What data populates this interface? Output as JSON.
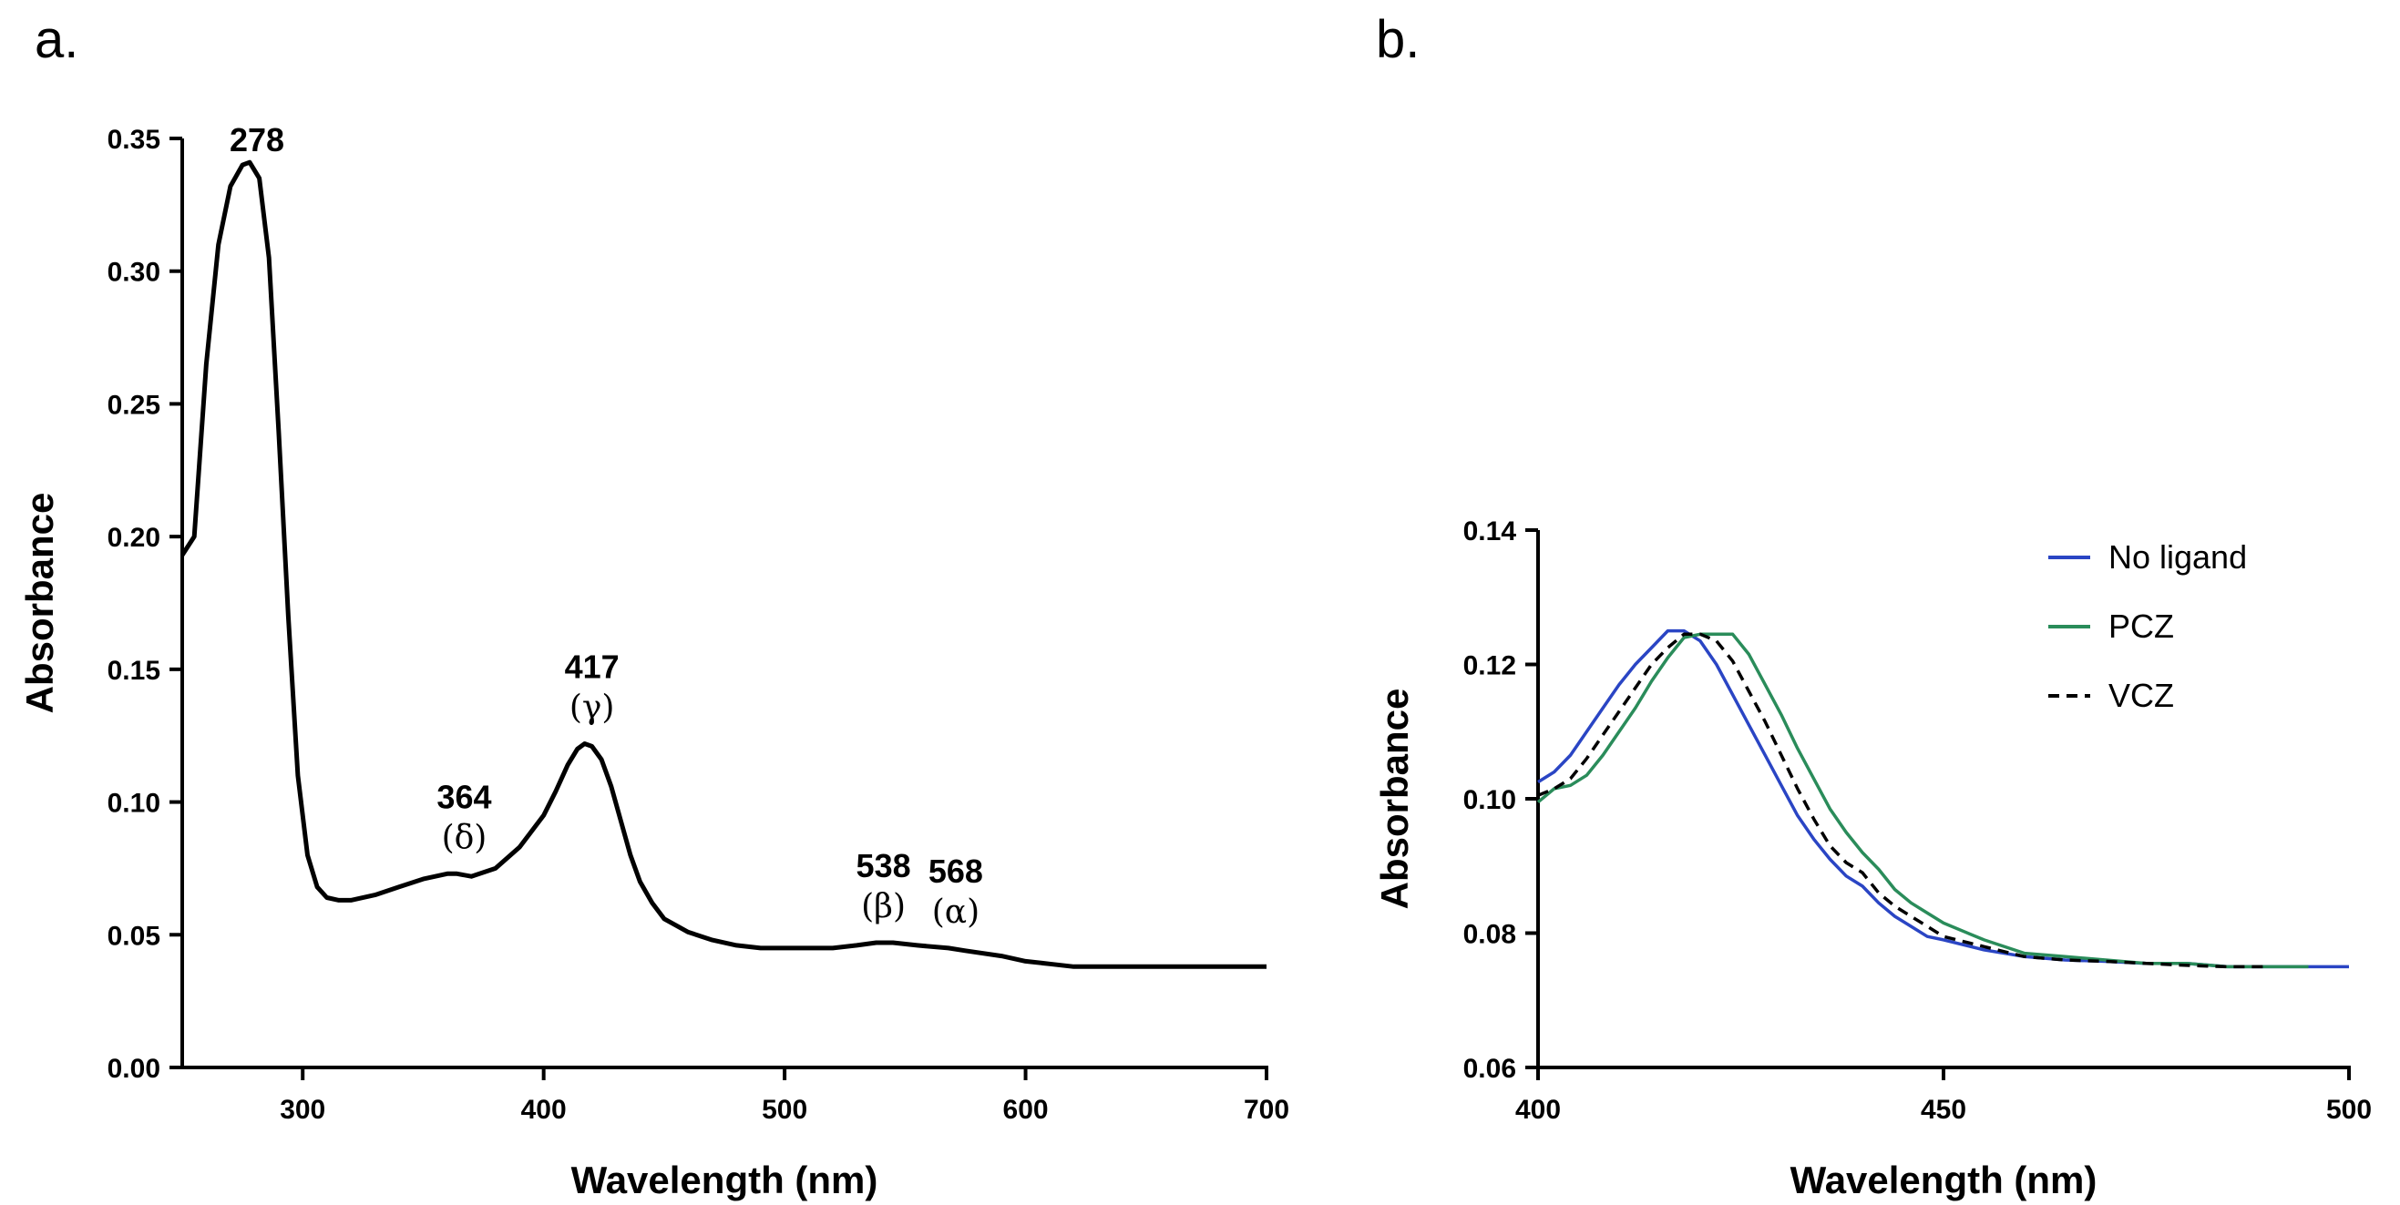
{
  "panels": {
    "a": {
      "letter": "a."
    },
    "b": {
      "letter": "b."
    }
  },
  "chart_data": [
    {
      "type": "line",
      "panel": "a",
      "xlabel": "Wavelength (nm)",
      "ylabel": "Absorbance",
      "xlim": [
        250,
        700
      ],
      "ylim": [
        0,
        0.35
      ],
      "xticks": [
        300,
        400,
        500,
        600,
        700
      ],
      "xtick_labels": [
        "300",
        "400",
        "500",
        "600",
        "700"
      ],
      "yticks": [
        0,
        0.05,
        0.1,
        0.15,
        0.2,
        0.25,
        0.3,
        0.35
      ],
      "ytick_labels": [
        "0.00",
        "0.05",
        "0.10",
        "0.15",
        "0.20",
        "0.25",
        "0.30",
        "0.35"
      ],
      "grid": false,
      "series": [
        {
          "color": "#000000",
          "x": [
            250,
            255,
            260,
            265,
            270,
            275,
            278,
            282,
            286,
            290,
            294,
            298,
            302,
            306,
            310,
            315,
            320,
            330,
            340,
            350,
            360,
            364,
            370,
            380,
            390,
            400,
            405,
            410,
            414,
            417,
            420,
            424,
            428,
            432,
            436,
            440,
            445,
            450,
            460,
            470,
            480,
            490,
            500,
            510,
            520,
            530,
            538,
            545,
            555,
            568,
            575,
            590,
            600,
            610,
            620,
            640,
            660,
            680,
            700
          ],
          "y": [
            0.193,
            0.2,
            0.265,
            0.31,
            0.332,
            0.34,
            0.341,
            0.335,
            0.305,
            0.24,
            0.17,
            0.11,
            0.08,
            0.068,
            0.064,
            0.063,
            0.063,
            0.065,
            0.068,
            0.071,
            0.073,
            0.073,
            0.072,
            0.075,
            0.083,
            0.095,
            0.104,
            0.114,
            0.12,
            0.122,
            0.121,
            0.116,
            0.106,
            0.093,
            0.08,
            0.07,
            0.062,
            0.056,
            0.051,
            0.048,
            0.046,
            0.045,
            0.045,
            0.045,
            0.045,
            0.046,
            0.047,
            0.047,
            0.046,
            0.045,
            0.044,
            0.042,
            0.04,
            0.039,
            0.038,
            0.038,
            0.038,
            0.038,
            0.038
          ]
        }
      ],
      "annotations": [
        {
          "x": 278,
          "label_top": "278",
          "label_bottom": ""
        },
        {
          "x": 364,
          "label_top": "364",
          "label_bottom": "(δ)"
        },
        {
          "x": 417,
          "label_top": "417",
          "label_bottom": "(γ)"
        },
        {
          "x": 538,
          "label_top": "538",
          "label_bottom": "(β)"
        },
        {
          "x": 568,
          "label_top": "568",
          "label_bottom": "(α)"
        }
      ]
    },
    {
      "type": "line",
      "panel": "b",
      "xlabel": "Wavelength (nm)",
      "ylabel": "Absorbance",
      "xlim": [
        400,
        500
      ],
      "ylim": [
        0.06,
        0.14
      ],
      "xticks": [
        400,
        450,
        500
      ],
      "xtick_labels": [
        "400",
        "450",
        "500"
      ],
      "yticks": [
        0.06,
        0.08,
        0.1,
        0.12,
        0.14
      ],
      "ytick_labels": [
        "0.06",
        "0.08",
        "0.10",
        "0.12",
        "0.14"
      ],
      "grid": false,
      "legend": "top-right",
      "series": [
        {
          "name": "No ligand",
          "color": "#2a45c4",
          "dash": "solid",
          "x": [
            400,
            402,
            404,
            406,
            408,
            410,
            412,
            414,
            416,
            418,
            420,
            422,
            424,
            426,
            428,
            430,
            432,
            434,
            436,
            438,
            440,
            442,
            444,
            446,
            448,
            450,
            455,
            460,
            465,
            470,
            475,
            480,
            485,
            490,
            495,
            500
          ],
          "y": [
            0.1025,
            0.104,
            0.1065,
            0.11,
            0.1135,
            0.117,
            0.12,
            0.1225,
            0.125,
            0.125,
            0.1235,
            0.12,
            0.1155,
            0.111,
            0.1065,
            0.102,
            0.0975,
            0.094,
            0.091,
            0.0885,
            0.087,
            0.0845,
            0.0825,
            0.081,
            0.0795,
            0.079,
            0.0775,
            0.0765,
            0.076,
            0.0758,
            0.0755,
            0.0755,
            0.075,
            0.075,
            0.075,
            0.075
          ]
        },
        {
          "name": "PCZ",
          "color": "#2a8c5a",
          "dash": "solid",
          "x": [
            400,
            402,
            404,
            406,
            408,
            410,
            412,
            414,
            416,
            418,
            420,
            422,
            424,
            426,
            428,
            430,
            432,
            434,
            436,
            438,
            440,
            442,
            444,
            446,
            448,
            450,
            455,
            460,
            465,
            470,
            475,
            480,
            485,
            490,
            495
          ],
          "y": [
            0.0995,
            0.1015,
            0.102,
            0.1035,
            0.1065,
            0.11,
            0.1135,
            0.1175,
            0.121,
            0.124,
            0.1245,
            0.1245,
            0.1245,
            0.1215,
            0.117,
            0.1125,
            0.1075,
            0.103,
            0.0985,
            0.095,
            0.092,
            0.0895,
            0.0865,
            0.0845,
            0.083,
            0.0815,
            0.079,
            0.077,
            0.0765,
            0.076,
            0.0755,
            0.0755,
            0.075,
            0.075,
            0.075
          ]
        },
        {
          "name": "VCZ",
          "color": "#000000",
          "dash": "dashed",
          "x": [
            400,
            402,
            404,
            406,
            408,
            410,
            412,
            414,
            416,
            418,
            420,
            422,
            424,
            426,
            428,
            430,
            432,
            434,
            436,
            438,
            440,
            442,
            444,
            446,
            448,
            450,
            455,
            460,
            465,
            470,
            475,
            480,
            485,
            490
          ],
          "y": [
            0.1005,
            0.1015,
            0.103,
            0.106,
            0.1095,
            0.113,
            0.1165,
            0.12,
            0.1225,
            0.1245,
            0.1245,
            0.1235,
            0.1205,
            0.116,
            0.1115,
            0.1065,
            0.1015,
            0.097,
            0.093,
            0.0905,
            0.089,
            0.086,
            0.084,
            0.0825,
            0.081,
            0.0795,
            0.078,
            0.0765,
            0.076,
            0.0758,
            0.0755,
            0.0752,
            0.075,
            0.075
          ]
        }
      ]
    }
  ]
}
